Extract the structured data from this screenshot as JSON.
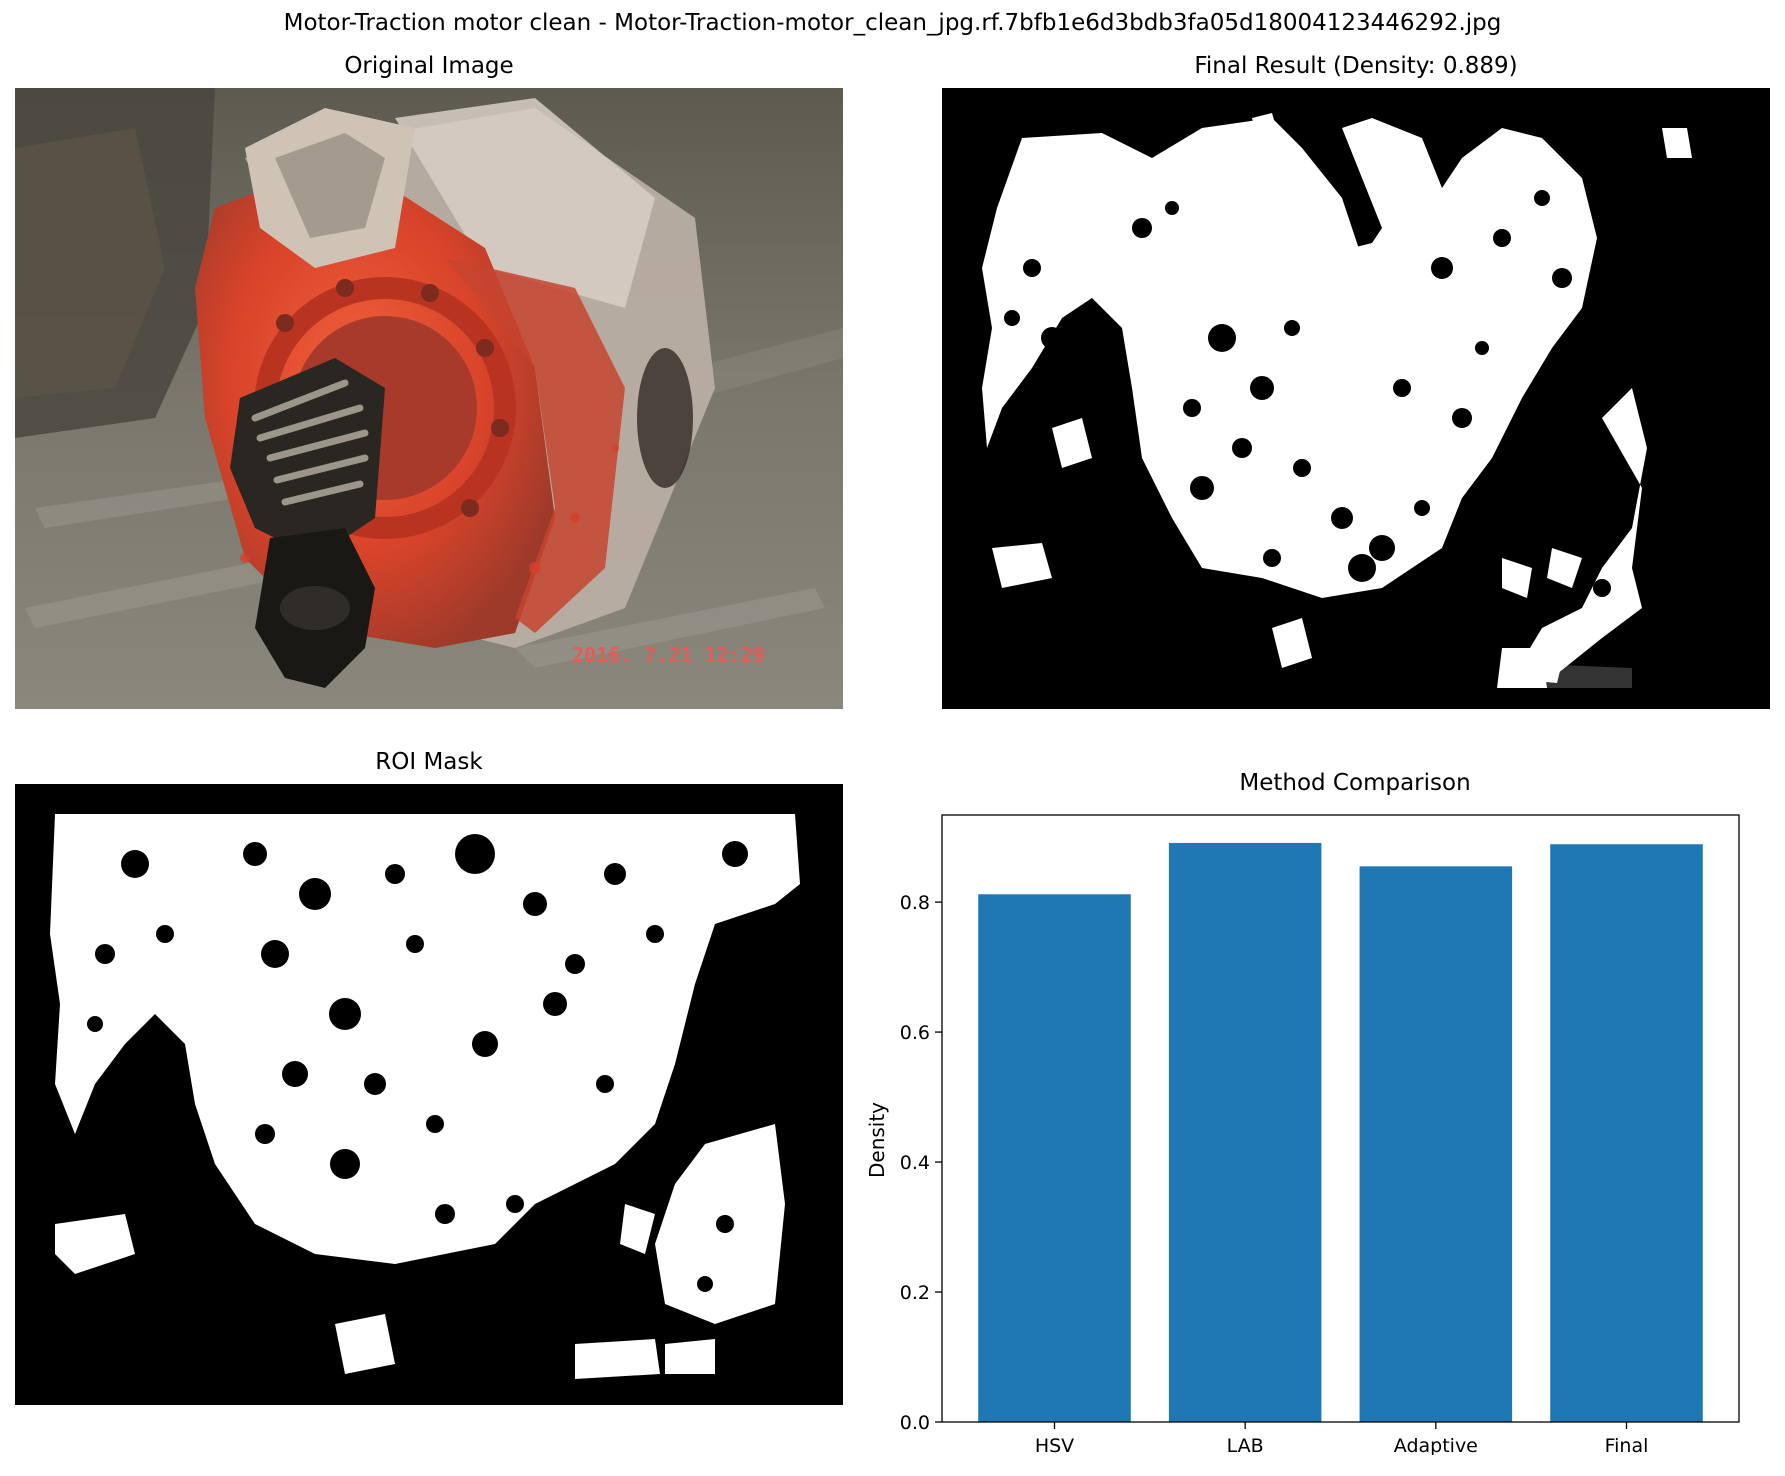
{
  "figure": {
    "suptitle": "Motor-Traction motor clean - Motor-Traction-motor_clean_jpg.rf.7bfb1e6d3bdb3fa05d18004123446292.jpg"
  },
  "panels": {
    "original": {
      "title": "Original Image",
      "timestamp": "2016. 7.21  12:29"
    },
    "final": {
      "title": "Final Result (Density: 0.889)"
    },
    "roi": {
      "title": "ROI Mask"
    }
  },
  "chart_data": {
    "type": "bar",
    "title": "Method Comparison",
    "xlabel": "",
    "ylabel": "Density",
    "categories": [
      "HSV",
      "LAB",
      "Adaptive",
      "Final"
    ],
    "values": [
      0.812,
      0.891,
      0.855,
      0.889
    ],
    "ylim": [
      0,
      0.934
    ],
    "yticks": [
      0.0,
      0.2,
      0.4,
      0.6,
      0.8
    ],
    "ytick_labels": [
      "0.0",
      "0.2",
      "0.4",
      "0.6",
      "0.8"
    ],
    "bar_color": "#1f77b4",
    "grid": false
  },
  "colors": {
    "mask_foreground": "#ffffff",
    "mask_background": "#000000",
    "motor_orange": "#e0482c",
    "floor_gray": "#6d6a60"
  }
}
